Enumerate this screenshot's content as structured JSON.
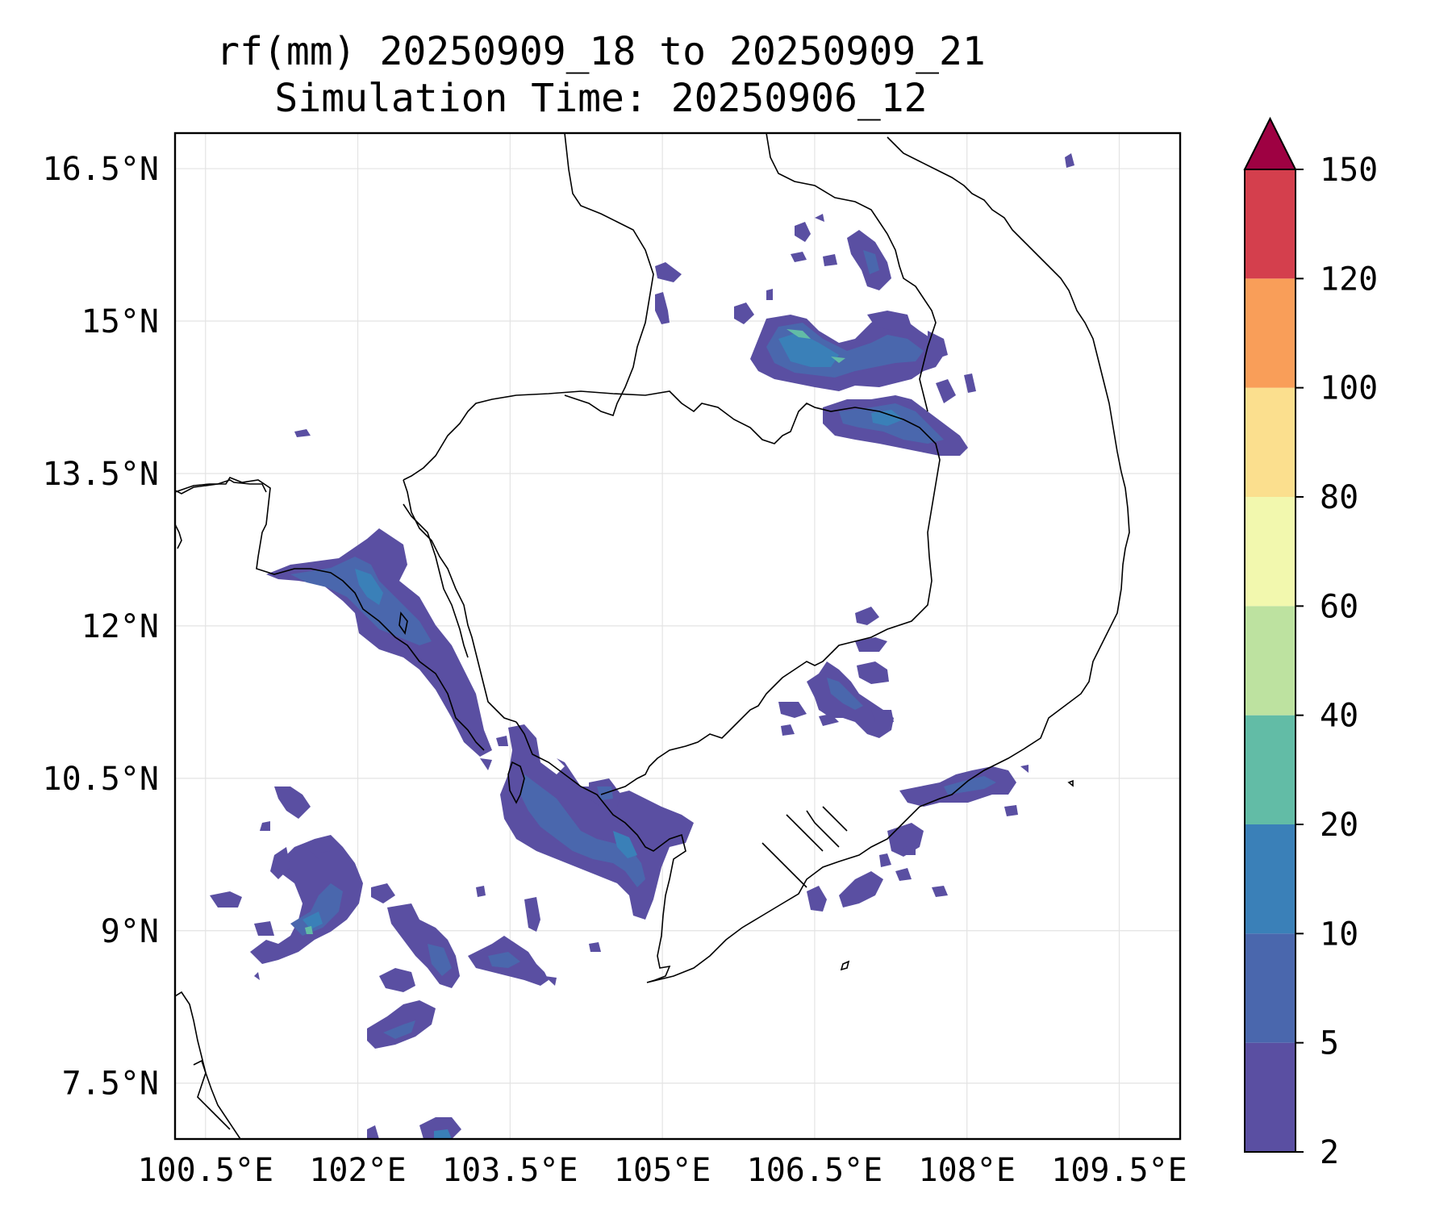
{
  "title": {
    "line1": "rf(mm) 20250909_18 to 20250909_21",
    "line2": "Simulation Time: 20250906_12"
  },
  "map": {
    "lon_range": [
      100.2,
      110.1
    ],
    "lat_range": [
      6.95,
      16.85
    ],
    "x_ticks": [
      100.5,
      102,
      103.5,
      105,
      106.5,
      108,
      109.5
    ],
    "x_tick_labels": [
      "100.5°E",
      "102°E",
      "103.5°E",
      "105°E",
      "106.5°E",
      "108°E",
      "109.5°E"
    ],
    "y_ticks": [
      16.5,
      15,
      13.5,
      12,
      10.5,
      9,
      7.5
    ],
    "y_tick_labels": [
      "16.5°N",
      "15°N",
      "13.5°N",
      "12°N",
      "10.5°N",
      "9°N",
      "7.5°N"
    ],
    "gridlines": true
  },
  "colorbar": {
    "levels": [
      "2",
      "5",
      "10",
      "20",
      "40",
      "60",
      "80",
      "100",
      "120",
      "150"
    ],
    "colors": [
      "#5a4fa2",
      "#4a67ad",
      "#3a80b8",
      "#62bca6",
      "#bde2a0",
      "#f2f8ae",
      "#fbdf8e",
      "#f99e59",
      "#d43f4d",
      "#9e0142"
    ],
    "extend": "max"
  },
  "chart_data": {
    "type": "heatmap",
    "variable": "rf(mm)",
    "period": "20250909_18 to 20250909_21",
    "simulation_time": "20250906_12",
    "levels": [
      2,
      5,
      10,
      20,
      40,
      60,
      80,
      100,
      120,
      150
    ],
    "features": [
      {
        "lon": [
          101.5,
          103.2
        ],
        "lat": [
          11.2,
          13.0
        ],
        "max_level": "20-40"
      },
      {
        "lon": [
          103.5,
          105.7
        ],
        "lat": [
          9.4,
          11.0
        ],
        "max_level": "20-40"
      },
      {
        "lon": [
          106.0,
          107.5
        ],
        "lat": [
          14.2,
          15.2
        ],
        "max_level": "20-40"
      },
      {
        "lon": [
          106.8,
          108.0
        ],
        "lat": [
          13.8,
          14.6
        ],
        "max_level": "10-20"
      },
      {
        "lon": [
          100.9,
          102.0
        ],
        "lat": [
          8.5,
          10.0
        ],
        "max_level": "20-40"
      },
      {
        "lon": [
          102.0,
          103.8
        ],
        "lat": [
          7.9,
          9.5
        ],
        "max_level": "10-20"
      },
      {
        "lon": [
          107.0,
          108.6
        ],
        "lat": [
          9.3,
          10.5
        ],
        "max_level": "5-10"
      }
    ]
  }
}
